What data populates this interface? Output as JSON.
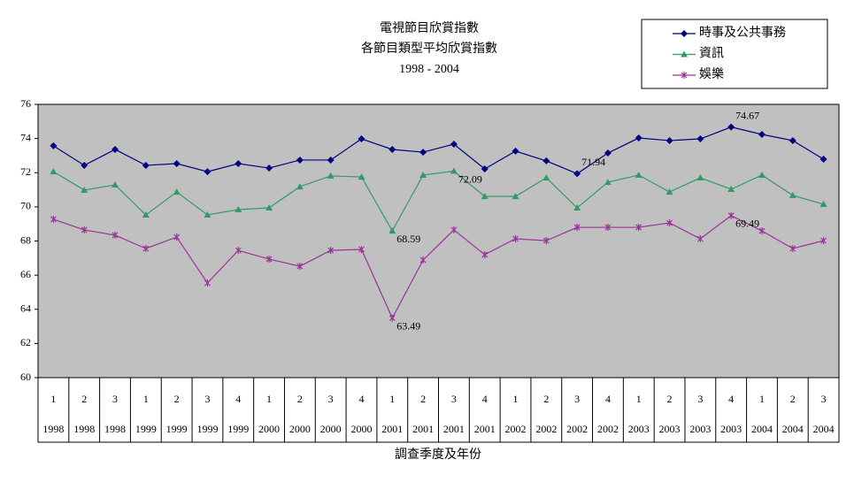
{
  "chart_data": {
    "type": "line",
    "title": [
      "電視節目欣賞指數",
      "各節目類型平均欣賞指數",
      "1998 - 2004"
    ],
    "x_label": "調查季度及年份",
    "categories": [
      [
        "1",
        "1998"
      ],
      [
        "2",
        "1998"
      ],
      [
        "3",
        "1998"
      ],
      [
        "1",
        "1999"
      ],
      [
        "2",
        "1999"
      ],
      [
        "3",
        "1999"
      ],
      [
        "4",
        "1999"
      ],
      [
        "1",
        "2000"
      ],
      [
        "2",
        "2000"
      ],
      [
        "3",
        "2000"
      ],
      [
        "4",
        "2000"
      ],
      [
        "1",
        "2001"
      ],
      [
        "2",
        "2001"
      ],
      [
        "3",
        "2001"
      ],
      [
        "4",
        "2001"
      ],
      [
        "1",
        "2002"
      ],
      [
        "2",
        "2002"
      ],
      [
        "3",
        "2002"
      ],
      [
        "4",
        "2002"
      ],
      [
        "1",
        "2003"
      ],
      [
        "2",
        "2003"
      ],
      [
        "3",
        "2003"
      ],
      [
        "4",
        "2003"
      ],
      [
        "1",
        "2004"
      ],
      [
        "2",
        "2004"
      ],
      [
        "3",
        "2004"
      ]
    ],
    "series": [
      {
        "name": "時事及公共事務",
        "color": "#000080",
        "marker": "diamond",
        "values": [
          73.57,
          72.43,
          73.36,
          72.43,
          72.53,
          72.06,
          72.53,
          72.27,
          72.74,
          72.74,
          73.98,
          73.36,
          73.2,
          73.67,
          72.22,
          73.26,
          72.69,
          71.94,
          73.15,
          74.03,
          73.88,
          73.98,
          74.67,
          74.24,
          73.88,
          72.79
        ],
        "value_labels": [
          null,
          null,
          null,
          null,
          null,
          null,
          null,
          null,
          null,
          null,
          null,
          null,
          null,
          null,
          null,
          null,
          null,
          "71.94",
          null,
          null,
          null,
          null,
          "74.67",
          null,
          null,
          null
        ]
      },
      {
        "name": "資訊",
        "color": "#339966",
        "marker": "triangle",
        "values": [
          72.06,
          70.98,
          71.29,
          69.53,
          70.87,
          69.53,
          69.84,
          69.94,
          71.18,
          71.81,
          71.75,
          68.59,
          71.86,
          72.09,
          70.61,
          70.61,
          71.7,
          69.94,
          71.44,
          71.86,
          70.87,
          71.7,
          71.03,
          71.86,
          70.67,
          70.15
        ],
        "value_labels": [
          null,
          null,
          null,
          null,
          null,
          null,
          null,
          null,
          null,
          null,
          null,
          "68.59",
          null,
          "72.09",
          null,
          null,
          null,
          null,
          null,
          null,
          null,
          null,
          null,
          null,
          null,
          null
        ]
      },
      {
        "name": "娛樂",
        "color": "#993399",
        "marker": "star",
        "values": [
          69.27,
          68.65,
          68.34,
          67.56,
          68.23,
          65.54,
          67.45,
          66.94,
          66.52,
          67.45,
          67.51,
          63.49,
          66.89,
          68.65,
          67.2,
          68.13,
          68.02,
          68.8,
          68.8,
          68.8,
          69.06,
          68.13,
          69.49,
          68.59,
          67.56,
          68.02
        ],
        "value_labels": [
          null,
          null,
          null,
          null,
          null,
          null,
          null,
          null,
          null,
          null,
          null,
          "63.49",
          null,
          null,
          null,
          null,
          null,
          null,
          null,
          null,
          null,
          null,
          "69.49",
          null,
          null,
          null
        ]
      }
    ],
    "ylim": [
      60,
      76
    ],
    "yticks": [
      60,
      62,
      64,
      66,
      68,
      70,
      72,
      74,
      76
    ],
    "plot_background": "#c0c0c0",
    "legend": "top-right"
  }
}
